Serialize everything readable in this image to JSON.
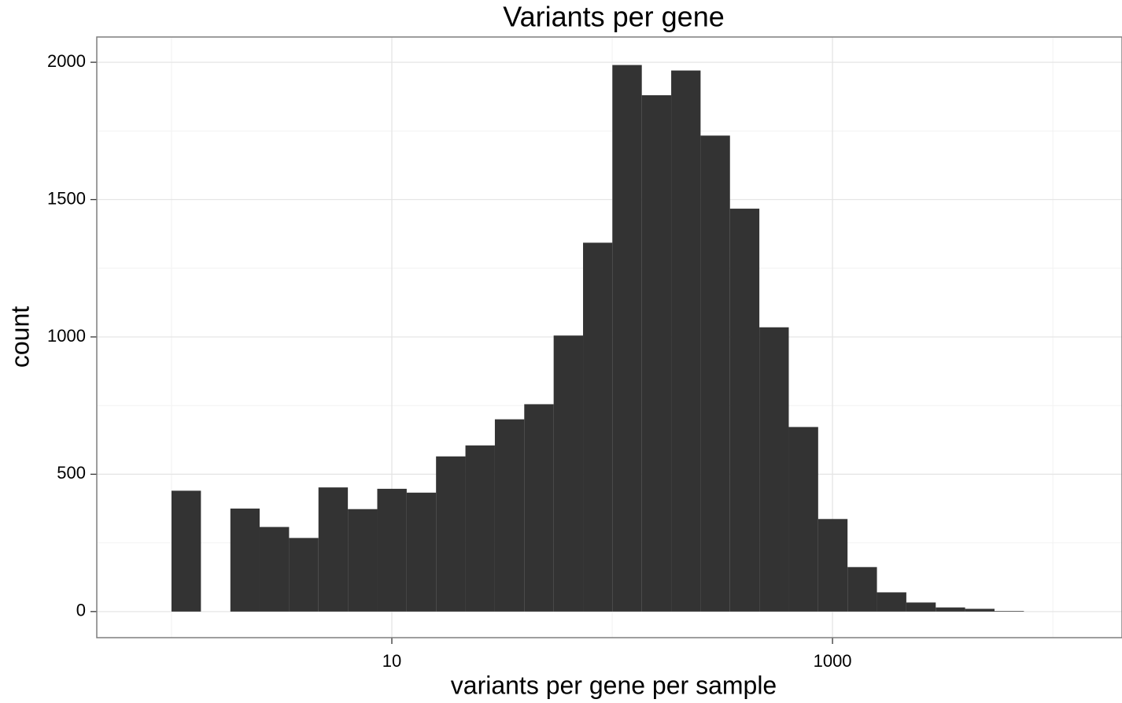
{
  "chart_data": {
    "type": "histogram",
    "title": "Variants per gene",
    "x_label": "variants per gene per sample",
    "y_label": "count",
    "bins": [
      1,
      1.36,
      1.85,
      2.512,
      3.417,
      4.645,
      6.316,
      8.587,
      11.68,
      15.87,
      21.58,
      29.35,
      39.9,
      54.25,
      73.76,
      100.2,
      136.3,
      185.3,
      251.9,
      342.5,
      465.6,
      633.1,
      860.8,
      1170,
      1591,
      2163,
      2941,
      3998,
      5436,
      7390
    ],
    "values": [
      440,
      0,
      375,
      308,
      268,
      452,
      373,
      447,
      433,
      565,
      605,
      700,
      755,
      1005,
      1343,
      1990,
      1880,
      1970,
      1733,
      1467,
      1035,
      672,
      337,
      162,
      70,
      33,
      15,
      10,
      2
    ],
    "color": "#333333",
    "x_log": true,
    "xlim": [
      0.458,
      20600
    ],
    "xticks": [
      10,
      1000
    ],
    "x_minor_grid": [
      1,
      100,
      10000
    ],
    "ylim": [
      -95,
      2092
    ],
    "yticks": [
      0,
      500,
      1000,
      1500,
      2000
    ],
    "y_minor_grid": [
      250,
      750,
      1250,
      1750
    ],
    "grid": true
  }
}
